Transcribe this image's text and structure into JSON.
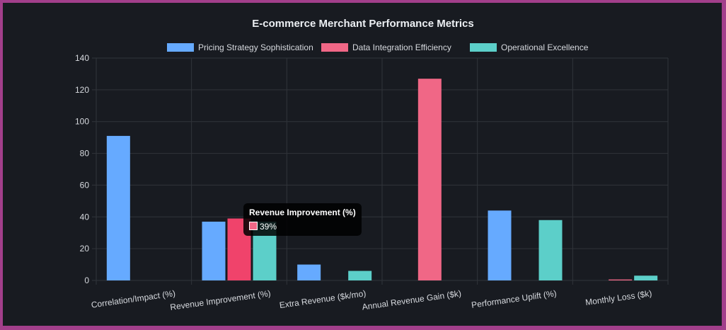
{
  "chart_data": {
    "type": "bar",
    "title": "E-commerce Merchant Performance Metrics",
    "categories": [
      "Correlation/Impact (%)",
      "Revenue Improvement (%)",
      "Extra Revenue ($k/mo)",
      "Annual Revenue Gain ($k)",
      "Performance Uplift (%)",
      "Monthly Loss ($k)"
    ],
    "series": [
      {
        "name": "Pricing Strategy Sophistication",
        "color": "#66aaff",
        "values": [
          91,
          37,
          10,
          0,
          44,
          0
        ]
      },
      {
        "name": "Data Integration Efficiency",
        "color": "#f06786",
        "values": [
          0,
          39,
          0,
          127,
          0,
          0.6
        ]
      },
      {
        "name": "Operational Excellence",
        "color": "#5ccfc9",
        "values": [
          0,
          37,
          6,
          0,
          38,
          3
        ]
      }
    ],
    "ylim": [
      0,
      140
    ],
    "yticks": [
      0,
      20,
      40,
      60,
      80,
      100,
      120,
      140
    ],
    "grid": true,
    "legend": "top",
    "hover_color": "#f0436b",
    "tooltip": {
      "title": "Revenue Improvement (%)",
      "value": "39%"
    }
  }
}
